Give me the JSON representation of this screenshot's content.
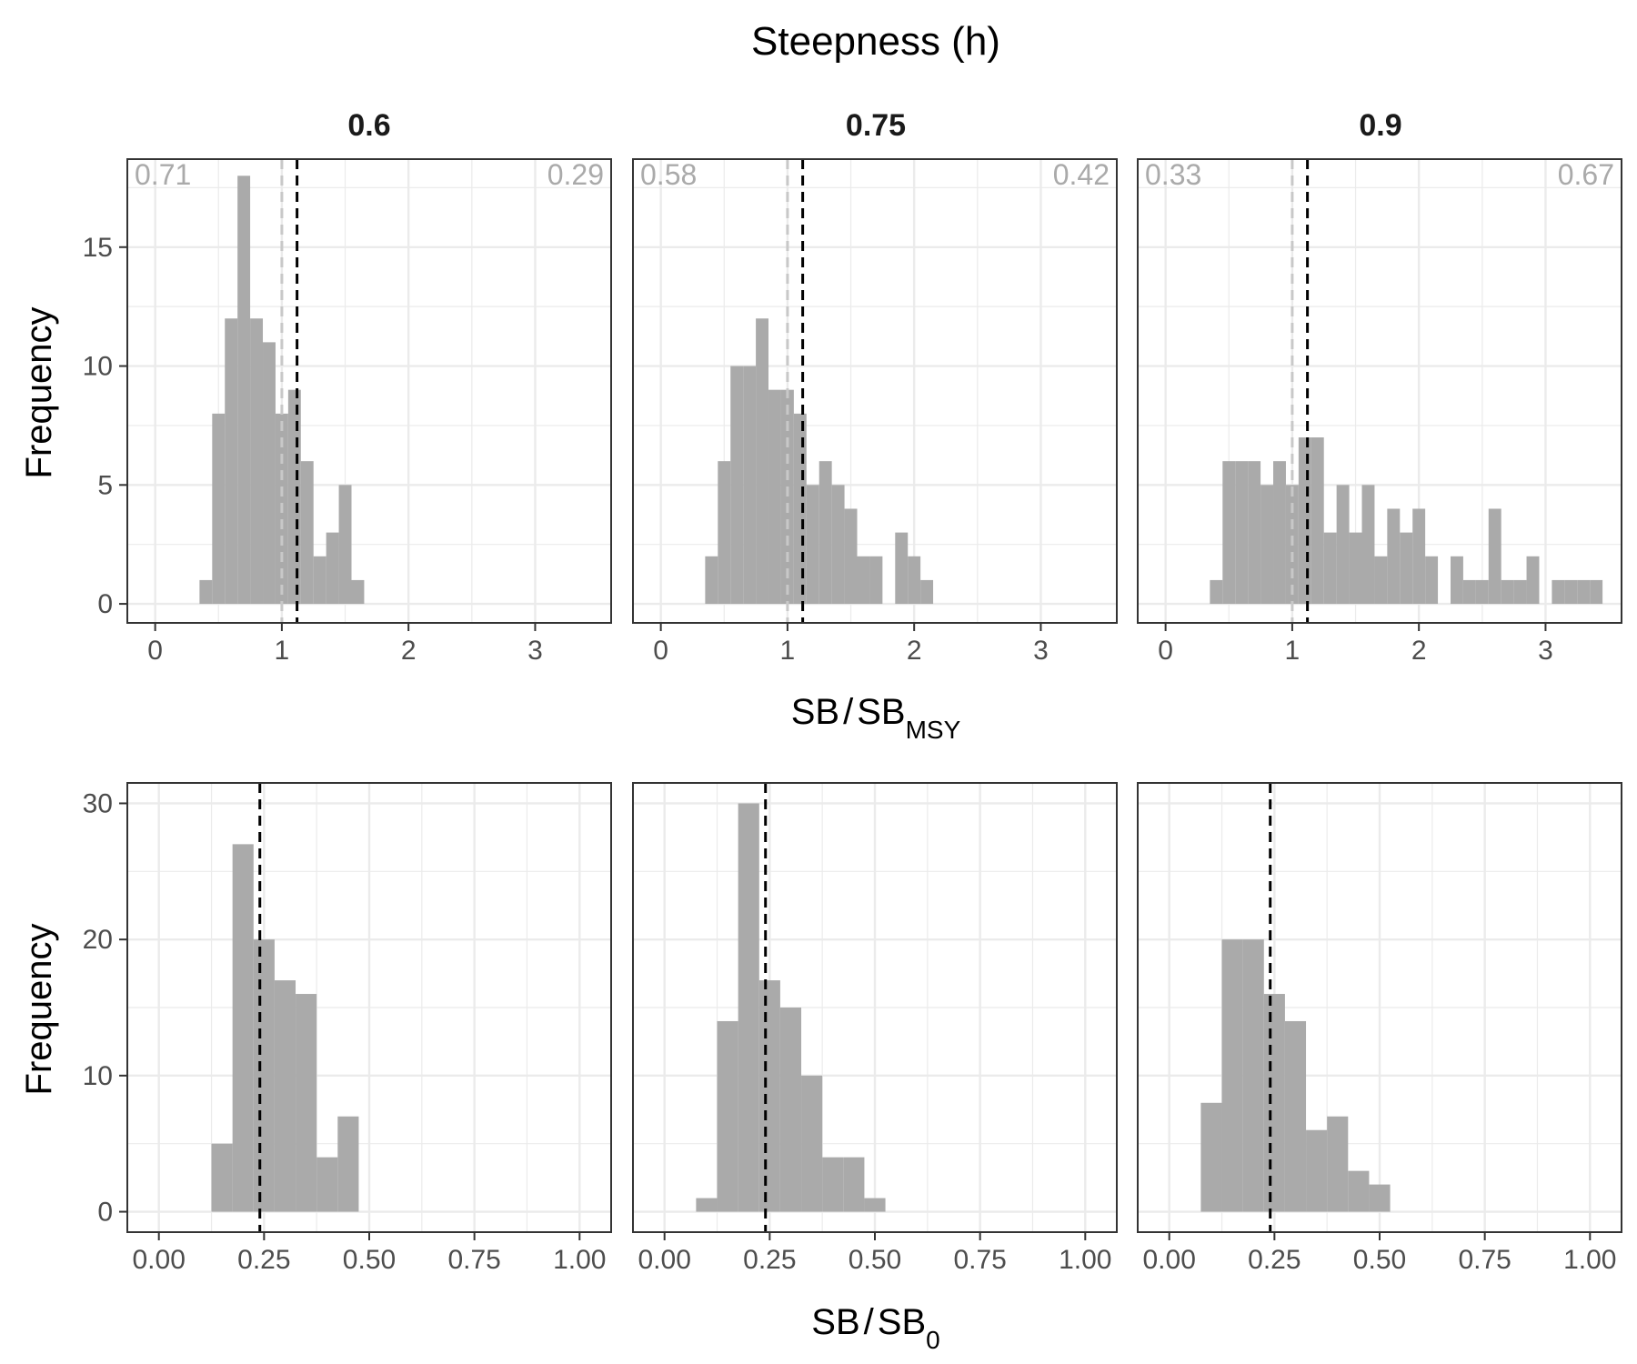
{
  "title": "Steepness (h)",
  "colors": {
    "bar": "#AAAAAA",
    "msy_line": "#C8C8C8",
    "ref_line": "#000000",
    "grid": "#EBEBEB",
    "border": "#333333",
    "corner_text": "#AAAAAA"
  },
  "chart_data": [
    {
      "type": "histogram",
      "row": "SB/SBMSY",
      "xlabel": "SB/SB_MSY",
      "ylabel": "Frequency",
      "x_ticks": [
        0,
        1,
        2,
        3
      ],
      "y_ticks": [
        0,
        5,
        10,
        15
      ],
      "xlim": [
        -0.22,
        3.6
      ],
      "ylim": [
        -0.8,
        18.7
      ],
      "bin_width": 0.1,
      "panels": [
        {
          "facet": "0.6",
          "corner_left": "0.71",
          "corner_right": "0.29",
          "ref_lines": [
            {
              "x": 1.0,
              "style": "msy"
            },
            {
              "x": 1.12,
              "style": "ref"
            }
          ],
          "bins": [
            {
              "x": 0.4,
              "count": 1
            },
            {
              "x": 0.5,
              "count": 8
            },
            {
              "x": 0.6,
              "count": 12
            },
            {
              "x": 0.7,
              "count": 18
            },
            {
              "x": 0.8,
              "count": 12
            },
            {
              "x": 0.9,
              "count": 11
            },
            {
              "x": 1.0,
              "count": 8
            },
            {
              "x": 1.1,
              "count": 9
            },
            {
              "x": 1.2,
              "count": 6
            },
            {
              "x": 1.3,
              "count": 2
            },
            {
              "x": 1.4,
              "count": 3
            },
            {
              "x": 1.5,
              "count": 5
            },
            {
              "x": 1.6,
              "count": 1
            }
          ]
        },
        {
          "facet": "0.75",
          "corner_left": "0.58",
          "corner_right": "0.42",
          "ref_lines": [
            {
              "x": 1.0,
              "style": "msy"
            },
            {
              "x": 1.12,
              "style": "ref"
            }
          ],
          "bins": [
            {
              "x": 0.4,
              "count": 2
            },
            {
              "x": 0.5,
              "count": 6
            },
            {
              "x": 0.6,
              "count": 10
            },
            {
              "x": 0.7,
              "count": 10
            },
            {
              "x": 0.8,
              "count": 12
            },
            {
              "x": 0.9,
              "count": 9
            },
            {
              "x": 1.0,
              "count": 9
            },
            {
              "x": 1.1,
              "count": 8
            },
            {
              "x": 1.2,
              "count": 5
            },
            {
              "x": 1.3,
              "count": 6
            },
            {
              "x": 1.4,
              "count": 5
            },
            {
              "x": 1.5,
              "count": 4
            },
            {
              "x": 1.6,
              "count": 2
            },
            {
              "x": 1.7,
              "count": 2
            },
            {
              "x": 1.9,
              "count": 3
            },
            {
              "x": 2.0,
              "count": 2
            },
            {
              "x": 2.1,
              "count": 1
            }
          ]
        },
        {
          "facet": "0.9",
          "corner_left": "0.33",
          "corner_right": "0.67",
          "ref_lines": [
            {
              "x": 1.0,
              "style": "msy"
            },
            {
              "x": 1.12,
              "style": "ref"
            }
          ],
          "bins": [
            {
              "x": 0.4,
              "count": 1
            },
            {
              "x": 0.5,
              "count": 6
            },
            {
              "x": 0.6,
              "count": 6
            },
            {
              "x": 0.7,
              "count": 6
            },
            {
              "x": 0.8,
              "count": 5
            },
            {
              "x": 0.9,
              "count": 6
            },
            {
              "x": 1.0,
              "count": 5
            },
            {
              "x": 1.1,
              "count": 7
            },
            {
              "x": 1.2,
              "count": 7
            },
            {
              "x": 1.3,
              "count": 3
            },
            {
              "x": 1.4,
              "count": 5
            },
            {
              "x": 1.5,
              "count": 3
            },
            {
              "x": 1.6,
              "count": 5
            },
            {
              "x": 1.7,
              "count": 2
            },
            {
              "x": 1.8,
              "count": 4
            },
            {
              "x": 1.9,
              "count": 3
            },
            {
              "x": 2.0,
              "count": 4
            },
            {
              "x": 2.1,
              "count": 2
            },
            {
              "x": 2.3,
              "count": 2
            },
            {
              "x": 2.4,
              "count": 1
            },
            {
              "x": 2.5,
              "count": 1
            },
            {
              "x": 2.6,
              "count": 4
            },
            {
              "x": 2.7,
              "count": 1
            },
            {
              "x": 2.8,
              "count": 1
            },
            {
              "x": 2.9,
              "count": 2
            },
            {
              "x": 3.1,
              "count": 1
            },
            {
              "x": 3.2,
              "count": 1
            },
            {
              "x": 3.3,
              "count": 1
            },
            {
              "x": 3.4,
              "count": 1
            }
          ]
        }
      ]
    },
    {
      "type": "histogram",
      "row": "SB/SB0",
      "xlabel": "SB/SB_0",
      "ylabel": "Frequency",
      "x_ticks": [
        "0.00",
        "0.25",
        "0.50",
        "0.75",
        "1.00"
      ],
      "y_ticks": [
        0,
        10,
        20,
        30
      ],
      "xlim": [
        -0.075,
        1.075
      ],
      "ylim": [
        -1.5,
        31.5
      ],
      "bin_width": 0.05,
      "panels": [
        {
          "facet": "0.6",
          "ref_lines": [
            {
              "x": 0.24,
              "style": "ref"
            }
          ],
          "bins": [
            {
              "x": 0.15,
              "count": 5
            },
            {
              "x": 0.2,
              "count": 27
            },
            {
              "x": 0.25,
              "count": 20
            },
            {
              "x": 0.3,
              "count": 17
            },
            {
              "x": 0.35,
              "count": 16
            },
            {
              "x": 0.4,
              "count": 4
            },
            {
              "x": 0.45,
              "count": 7
            }
          ]
        },
        {
          "facet": "0.75",
          "ref_lines": [
            {
              "x": 0.24,
              "style": "ref"
            }
          ],
          "bins": [
            {
              "x": 0.1,
              "count": 1
            },
            {
              "x": 0.15,
              "count": 14
            },
            {
              "x": 0.2,
              "count": 30
            },
            {
              "x": 0.25,
              "count": 17
            },
            {
              "x": 0.3,
              "count": 15
            },
            {
              "x": 0.35,
              "count": 10
            },
            {
              "x": 0.4,
              "count": 4
            },
            {
              "x": 0.45,
              "count": 4
            },
            {
              "x": 0.5,
              "count": 1
            }
          ]
        },
        {
          "facet": "0.9",
          "ref_lines": [
            {
              "x": 0.24,
              "style": "ref"
            }
          ],
          "bins": [
            {
              "x": 0.1,
              "count": 8
            },
            {
              "x": 0.15,
              "count": 20
            },
            {
              "x": 0.2,
              "count": 20
            },
            {
              "x": 0.25,
              "count": 16
            },
            {
              "x": 0.3,
              "count": 14
            },
            {
              "x": 0.35,
              "count": 6
            },
            {
              "x": 0.4,
              "count": 7
            },
            {
              "x": 0.45,
              "count": 3
            },
            {
              "x": 0.5,
              "count": 2
            }
          ]
        }
      ]
    }
  ]
}
